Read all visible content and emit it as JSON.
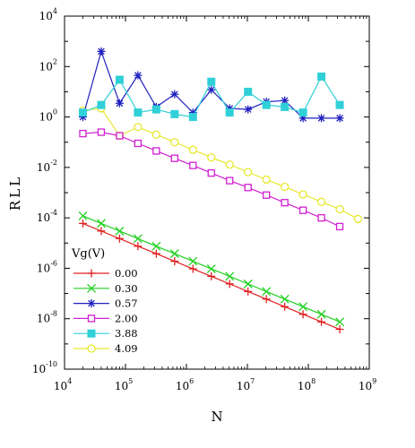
{
  "chart_data": {
    "type": "line",
    "title": "",
    "xlabel": "N",
    "ylabel": "RLL",
    "xscale": "log",
    "yscale": "log",
    "xlim_exp": [
      4,
      9
    ],
    "ylim_exp": [
      -10,
      4
    ],
    "x_ticks": [
      {
        "base": "10",
        "exp": "4"
      },
      {
        "base": "10",
        "exp": "5"
      },
      {
        "base": "10",
        "exp": "6"
      },
      {
        "base": "10",
        "exp": "7"
      },
      {
        "base": "10",
        "exp": "8"
      },
      {
        "base": "10",
        "exp": "9"
      }
    ],
    "y_ticks": [
      {
        "base": "10",
        "exp": "4"
      },
      {
        "base": "10",
        "exp": "2"
      },
      {
        "base": "10",
        "exp": "0"
      },
      {
        "base": "10",
        "exp": "-2"
      },
      {
        "base": "10",
        "exp": "-4"
      },
      {
        "base": "10",
        "exp": "-6"
      },
      {
        "base": "10",
        "exp": "-8"
      },
      {
        "base": "10",
        "exp": "-10"
      }
    ],
    "grid": false,
    "legend_title": "Vg(V)",
    "legend_position": "bottom-left",
    "series": [
      {
        "name": "0.00",
        "color": "#e02020",
        "marker": "plus",
        "x": [
          20000,
          40000,
          80000,
          160000,
          320000,
          640000,
          1280000,
          2560000,
          5120000,
          10240000,
          20480000,
          40960000,
          81920000,
          163840000,
          327680000
        ],
        "y": [
          6e-05,
          3e-05,
          1.5e-05,
          7.5e-06,
          3.8e-06,
          1.9e-06,
          9.5e-07,
          4.8e-07,
          2.4e-07,
          1.2e-07,
          6e-08,
          3e-08,
          1.5e-08,
          7.5e-09,
          3.8e-09
        ]
      },
      {
        "name": "0.30",
        "color": "#20d020",
        "marker": "cross",
        "x": [
          20000,
          40000,
          80000,
          160000,
          320000,
          640000,
          1280000,
          2560000,
          5120000,
          10240000,
          20480000,
          40960000,
          81920000,
          163840000,
          327680000
        ],
        "y": [
          0.00012,
          6e-05,
          3e-05,
          1.5e-05,
          7.5e-06,
          3.8e-06,
          1.9e-06,
          9.5e-07,
          4.8e-07,
          2.4e-07,
          1.2e-07,
          6e-08,
          3e-08,
          1.5e-08,
          7.5e-09
        ]
      },
      {
        "name": "0.57",
        "color": "#2020c0",
        "marker": "asterisk",
        "x": [
          20000,
          40000,
          80000,
          160000,
          320000,
          640000,
          1280000,
          2560000,
          5120000,
          10240000,
          20480000,
          40960000,
          81920000,
          163840000,
          327680000
        ],
        "y": [
          1.0,
          400,
          3.5,
          45,
          2.5,
          8,
          1.5,
          12,
          2.2,
          2.0,
          4,
          4.5,
          0.9,
          0.9,
          0.9
        ]
      },
      {
        "name": "2.00",
        "color": "#d020d0",
        "marker": "square-open",
        "x": [
          20000,
          40000,
          80000,
          160000,
          320000,
          640000,
          1280000,
          2560000,
          5120000,
          10240000,
          20480000,
          40960000,
          81920000,
          163840000,
          327680000
        ],
        "y": [
          0.22,
          0.25,
          0.18,
          0.09,
          0.045,
          0.023,
          0.012,
          0.006,
          0.003,
          0.0016,
          0.0008,
          0.0004,
          0.0002,
          0.0001,
          4.5e-05
        ]
      },
      {
        "name": "3.88",
        "color": "#30d0d8",
        "marker": "square-filled",
        "x": [
          20000,
          40000,
          80000,
          160000,
          320000,
          640000,
          1280000,
          2560000,
          5120000,
          10240000,
          20480000,
          40960000,
          81920000,
          163840000,
          327680000
        ],
        "y": [
          1.5,
          3,
          30,
          1.5,
          2,
          1.3,
          1.0,
          25,
          1.5,
          10,
          3,
          2.5,
          1.5,
          40,
          3
        ]
      },
      {
        "name": "4.09",
        "color": "#e8e830",
        "marker": "circle-open",
        "x": [
          20000,
          40000,
          80000,
          160000,
          320000,
          640000,
          1280000,
          2560000,
          5120000,
          10240000,
          20480000,
          40960000,
          81920000,
          163840000,
          327680000,
          655360000
        ],
        "y": [
          1.8,
          2.2,
          0.18,
          0.4,
          0.2,
          0.1,
          0.05,
          0.025,
          0.013,
          0.0065,
          0.0033,
          0.0017,
          0.00085,
          0.00043,
          0.00022,
          9e-05
        ]
      }
    ]
  }
}
